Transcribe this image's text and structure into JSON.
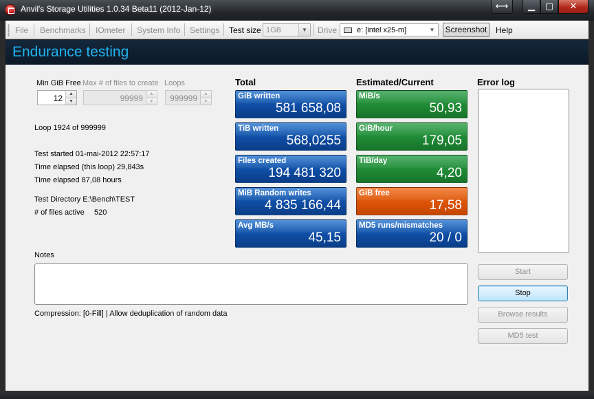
{
  "window": {
    "title": "Anvil's Storage Utilities 1.0.34 Beta11 (2012-Jan-12)",
    "icons": [
      "app-icon",
      "swap-arrows-icon",
      "minimize-icon",
      "maximize-icon",
      "close-icon"
    ]
  },
  "menu": {
    "file": "File",
    "benchmarks": "Benchmarks",
    "iometer": "IOmeter",
    "system_info": "System Info",
    "settings": "Settings",
    "test_size_label": "Test size",
    "test_size_value": "1GB",
    "drive_label": "Drive",
    "drive_value": "e: [intel x25-m]",
    "screenshot": "Screenshot",
    "help": "Help"
  },
  "header": {
    "title": "Endurance testing"
  },
  "params": {
    "min_free_label": "Min GiB Free",
    "min_free_value": "12",
    "max_files_label": "Max # of files to create",
    "max_files_value": "99999",
    "loops_label": "Loops",
    "loops_value": "999999"
  },
  "info": {
    "loop": "Loop 1924 of 999999",
    "started": "Test started 01-mai-2012 22:57:17",
    "elapsed_loop": "Time elapsed (this loop) 29,843s",
    "elapsed_total": "Time elapsed 87,08 hours",
    "directory": "Test Directory E:\\Bench\\TEST",
    "files_active_label": "# of files active",
    "files_active_value": "520"
  },
  "total": {
    "heading": "Total",
    "tiles": [
      {
        "label": "GiB written",
        "value": "581 658,08",
        "color": "blue"
      },
      {
        "label": "TiB written",
        "value": "568,0255",
        "color": "blue"
      },
      {
        "label": "Files created",
        "value": "194 481 320",
        "color": "blue"
      },
      {
        "label": "MiB Random writes",
        "value": "4 835 166,44",
        "color": "blue"
      },
      {
        "label": "Avg MB/s",
        "value": "45,15",
        "color": "blue"
      }
    ]
  },
  "estimated": {
    "heading": "Estimated/Current",
    "tiles": [
      {
        "label": "MiB/s",
        "value": "50,93",
        "color": "green"
      },
      {
        "label": "GiB/hour",
        "value": "179,05",
        "color": "green"
      },
      {
        "label": "TiB/day",
        "value": "4,20",
        "color": "green"
      },
      {
        "label": "GiB free",
        "value": "17,58",
        "color": "orange"
      },
      {
        "label": "MD5 runs/mismatches",
        "value": "20 / 0",
        "color": "blue"
      }
    ]
  },
  "error_log": {
    "heading": "Error log"
  },
  "notes": {
    "label": "Notes",
    "compression": "Compression: [0-Fill] | Allow deduplication of random data"
  },
  "buttons": {
    "start": "Start",
    "stop": "Stop",
    "browse": "Browse results",
    "md5": "MD5 test"
  },
  "colors": {
    "header_bg": "#0f1f30",
    "header_text": "#20b3ee",
    "tile_blue": "#1354a8",
    "tile_green": "#238f3b",
    "tile_orange": "#dc5408"
  }
}
